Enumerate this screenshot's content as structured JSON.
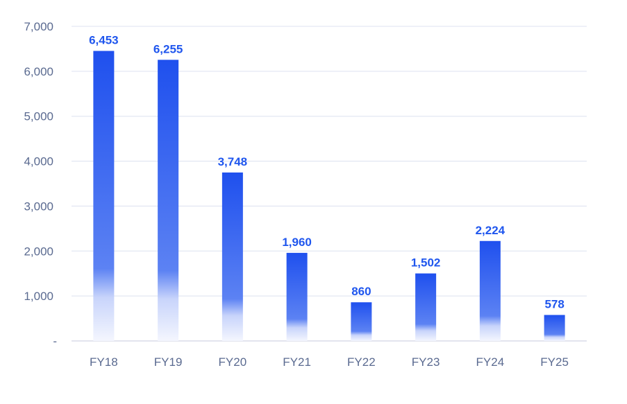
{
  "chart_data": {
    "type": "bar",
    "title": "",
    "xlabel": "",
    "ylabel": "",
    "categories": [
      "FY18",
      "FY19",
      "FY20",
      "FY21",
      "FY22",
      "FY23",
      "FY24",
      "FY25"
    ],
    "values": [
      6453,
      6255,
      3748,
      1960,
      860,
      1502,
      2224,
      578
    ],
    "data_labels": [
      "6,453",
      "6,255",
      "3,748",
      "1,960",
      "860",
      "1,502",
      "2,224",
      "578"
    ],
    "ylim": [
      0,
      7000
    ],
    "yticks": [
      0,
      1000,
      2000,
      3000,
      4000,
      5000,
      6000,
      7000
    ],
    "ytick_labels": [
      "-",
      "1,000",
      "2,000",
      "3,000",
      "4,000",
      "5,000",
      "6,000",
      "7,000"
    ],
    "grid": true,
    "legend": null,
    "colors": {
      "bar_top": "#1f50ee",
      "bar_bottom": "#ffffff",
      "label": "#1f56ee",
      "tick": "#5a6a90",
      "grid": "#e3e7f3"
    }
  }
}
